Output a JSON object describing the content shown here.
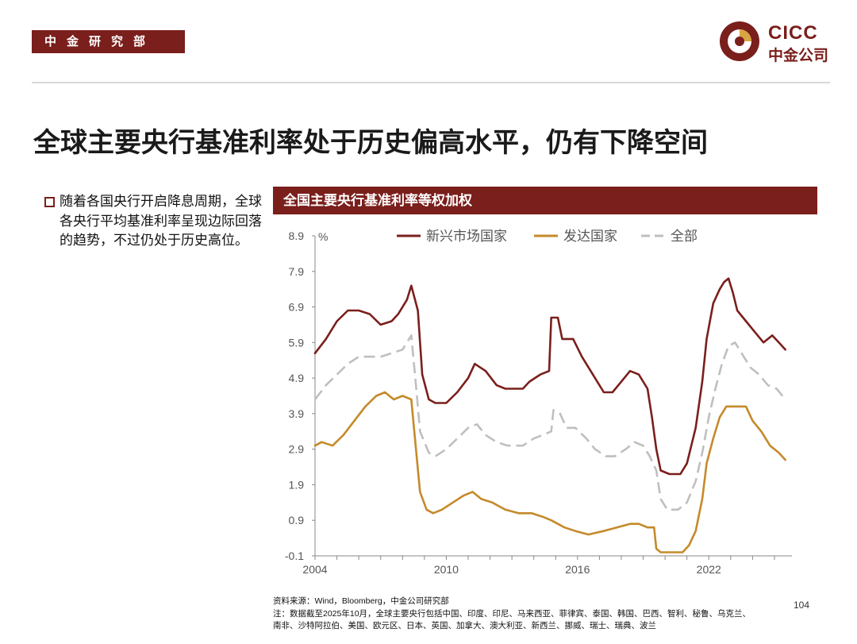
{
  "header": {
    "department": "中金研究部",
    "logo_en": "CICC",
    "logo_cn": "中金公司",
    "brand_color": "#7a1f1c"
  },
  "title": "全球主要央行基准利率处于历史偏高水平，仍有下降空间",
  "bullet": "随着各国央行开启降息周期，全球各央行平均基准利率呈现边际回落的趋势，不过仍处于历史高位。",
  "chart_header": "全国主要央行基准利率等权加权",
  "footer": {
    "source": "资料来源：Wind，Bloomberg，中金公司研究部",
    "note_line1": "注：数据截至2025年10月，全球主要央行包括中国、印度、印尼、马来西亚、菲律宾、泰国、韩国、巴西、智利、秘鲁、乌克兰、",
    "note_line2": "南非、沙特阿拉伯、美国、欧元区、日本、英国、加拿大、澳大利亚、新西兰、挪威、瑞士、瑞典、波兰"
  },
  "page_number": "104",
  "chart_data": {
    "type": "line",
    "title": "全国主要央行基准利率等权加权",
    "ylabel": "%",
    "xlabel": "",
    "ylim": [
      -0.1,
      8.9
    ],
    "xlim": [
      2004,
      2025.8
    ],
    "yticks": [
      "8.9",
      "7.9",
      "6.9",
      "5.9",
      "4.9",
      "3.9",
      "2.9",
      "1.9",
      "0.9",
      "-0.1"
    ],
    "xticks": [
      "2004",
      "2010",
      "2016",
      "2022"
    ],
    "legend_position": "top",
    "grid": false,
    "series": [
      {
        "name": "新兴市场国家",
        "color": "#7a1f1c",
        "dash": "solid",
        "points": [
          [
            2004.0,
            5.6
          ],
          [
            2004.5,
            6.0
          ],
          [
            2005.0,
            6.5
          ],
          [
            2005.5,
            6.8
          ],
          [
            2006.0,
            6.8
          ],
          [
            2006.5,
            6.7
          ],
          [
            2007.0,
            6.4
          ],
          [
            2007.5,
            6.5
          ],
          [
            2007.8,
            6.7
          ],
          [
            2008.2,
            7.1
          ],
          [
            2008.4,
            7.5
          ],
          [
            2008.7,
            6.8
          ],
          [
            2008.9,
            5.0
          ],
          [
            2009.2,
            4.3
          ],
          [
            2009.5,
            4.2
          ],
          [
            2010.0,
            4.2
          ],
          [
            2010.5,
            4.5
          ],
          [
            2011.0,
            4.9
          ],
          [
            2011.3,
            5.3
          ],
          [
            2011.8,
            5.1
          ],
          [
            2012.3,
            4.7
          ],
          [
            2012.7,
            4.6
          ],
          [
            2013.5,
            4.6
          ],
          [
            2013.8,
            4.8
          ],
          [
            2014.3,
            5.0
          ],
          [
            2014.7,
            5.1
          ],
          [
            2014.8,
            6.6
          ],
          [
            2015.1,
            6.6
          ],
          [
            2015.3,
            6.0
          ],
          [
            2015.8,
            6.0
          ],
          [
            2016.2,
            5.5
          ],
          [
            2016.7,
            5.0
          ],
          [
            2017.2,
            4.5
          ],
          [
            2017.6,
            4.5
          ],
          [
            2018.0,
            4.8
          ],
          [
            2018.4,
            5.1
          ],
          [
            2018.8,
            5.0
          ],
          [
            2019.2,
            4.6
          ],
          [
            2019.4,
            3.8
          ],
          [
            2019.6,
            2.9
          ],
          [
            2019.8,
            2.3
          ],
          [
            2020.2,
            2.2
          ],
          [
            2020.7,
            2.2
          ],
          [
            2021.0,
            2.5
          ],
          [
            2021.4,
            3.5
          ],
          [
            2021.7,
            4.8
          ],
          [
            2021.9,
            6.0
          ],
          [
            2022.2,
            7.0
          ],
          [
            2022.5,
            7.4
          ],
          [
            2022.7,
            7.6
          ],
          [
            2022.9,
            7.7
          ],
          [
            2023.1,
            7.3
          ],
          [
            2023.3,
            6.8
          ],
          [
            2023.7,
            6.5
          ],
          [
            2024.1,
            6.2
          ],
          [
            2024.5,
            5.9
          ],
          [
            2024.9,
            6.1
          ],
          [
            2025.2,
            5.9
          ],
          [
            2025.5,
            5.7
          ]
        ]
      },
      {
        "name": "发达国家",
        "color": "#c58a2a",
        "dash": "solid",
        "points": [
          [
            2004.0,
            3.0
          ],
          [
            2004.3,
            3.1
          ],
          [
            2004.8,
            3.0
          ],
          [
            2005.3,
            3.3
          ],
          [
            2005.8,
            3.7
          ],
          [
            2006.3,
            4.1
          ],
          [
            2006.8,
            4.4
          ],
          [
            2007.2,
            4.5
          ],
          [
            2007.6,
            4.3
          ],
          [
            2008.0,
            4.4
          ],
          [
            2008.4,
            4.3
          ],
          [
            2008.6,
            3.0
          ],
          [
            2008.8,
            1.7
          ],
          [
            2009.1,
            1.2
          ],
          [
            2009.4,
            1.1
          ],
          [
            2009.8,
            1.2
          ],
          [
            2010.3,
            1.4
          ],
          [
            2010.8,
            1.6
          ],
          [
            2011.2,
            1.7
          ],
          [
            2011.6,
            1.5
          ],
          [
            2012.1,
            1.4
          ],
          [
            2012.7,
            1.2
          ],
          [
            2013.3,
            1.1
          ],
          [
            2013.9,
            1.1
          ],
          [
            2014.4,
            1.0
          ],
          [
            2014.8,
            0.9
          ],
          [
            2015.4,
            0.7
          ],
          [
            2015.9,
            0.6
          ],
          [
            2016.5,
            0.5
          ],
          [
            2017.2,
            0.6
          ],
          [
            2017.8,
            0.7
          ],
          [
            2018.4,
            0.8
          ],
          [
            2018.8,
            0.8
          ],
          [
            2019.2,
            0.7
          ],
          [
            2019.5,
            0.7
          ],
          [
            2019.6,
            0.1
          ],
          [
            2019.8,
            0.0
          ],
          [
            2020.3,
            0.0
          ],
          [
            2020.8,
            0.0
          ],
          [
            2021.1,
            0.2
          ],
          [
            2021.4,
            0.6
          ],
          [
            2021.7,
            1.5
          ],
          [
            2021.9,
            2.5
          ],
          [
            2022.2,
            3.2
          ],
          [
            2022.5,
            3.8
          ],
          [
            2022.8,
            4.1
          ],
          [
            2023.3,
            4.1
          ],
          [
            2023.7,
            4.1
          ],
          [
            2024.0,
            3.7
          ],
          [
            2024.4,
            3.4
          ],
          [
            2024.8,
            3.0
          ],
          [
            2025.2,
            2.8
          ],
          [
            2025.5,
            2.6
          ]
        ]
      },
      {
        "name": "全部",
        "color": "#bfbfbf",
        "dash": "dashed",
        "points": [
          [
            2004.0,
            4.3
          ],
          [
            2004.5,
            4.7
          ],
          [
            2005.0,
            5.0
          ],
          [
            2005.5,
            5.3
          ],
          [
            2006.0,
            5.5
          ],
          [
            2006.5,
            5.5
          ],
          [
            2007.0,
            5.5
          ],
          [
            2007.5,
            5.6
          ],
          [
            2008.0,
            5.7
          ],
          [
            2008.4,
            6.1
          ],
          [
            2008.6,
            4.8
          ],
          [
            2008.8,
            3.4
          ],
          [
            2009.2,
            2.8
          ],
          [
            2009.5,
            2.7
          ],
          [
            2010.0,
            2.9
          ],
          [
            2010.5,
            3.2
          ],
          [
            2011.0,
            3.5
          ],
          [
            2011.4,
            3.6
          ],
          [
            2011.8,
            3.3
          ],
          [
            2012.3,
            3.1
          ],
          [
            2012.8,
            3.0
          ],
          [
            2013.5,
            3.0
          ],
          [
            2014.0,
            3.2
          ],
          [
            2014.4,
            3.3
          ],
          [
            2014.8,
            3.4
          ],
          [
            2014.9,
            4.0
          ],
          [
            2015.2,
            3.9
          ],
          [
            2015.5,
            3.5
          ],
          [
            2015.9,
            3.5
          ],
          [
            2016.4,
            3.2
          ],
          [
            2016.8,
            2.9
          ],
          [
            2017.3,
            2.7
          ],
          [
            2017.7,
            2.7
          ],
          [
            2018.2,
            2.9
          ],
          [
            2018.6,
            3.1
          ],
          [
            2019.0,
            3.0
          ],
          [
            2019.3,
            2.7
          ],
          [
            2019.6,
            2.3
          ],
          [
            2019.8,
            1.5
          ],
          [
            2020.1,
            1.2
          ],
          [
            2020.6,
            1.2
          ],
          [
            2021.0,
            1.4
          ],
          [
            2021.4,
            2.0
          ],
          [
            2021.7,
            2.8
          ],
          [
            2022.0,
            3.8
          ],
          [
            2022.3,
            4.6
          ],
          [
            2022.6,
            5.3
          ],
          [
            2022.9,
            5.8
          ],
          [
            2023.2,
            5.9
          ],
          [
            2023.5,
            5.6
          ],
          [
            2023.9,
            5.2
          ],
          [
            2024.3,
            5.0
          ],
          [
            2024.7,
            4.7
          ],
          [
            2025.1,
            4.6
          ],
          [
            2025.5,
            4.3
          ]
        ]
      }
    ]
  }
}
